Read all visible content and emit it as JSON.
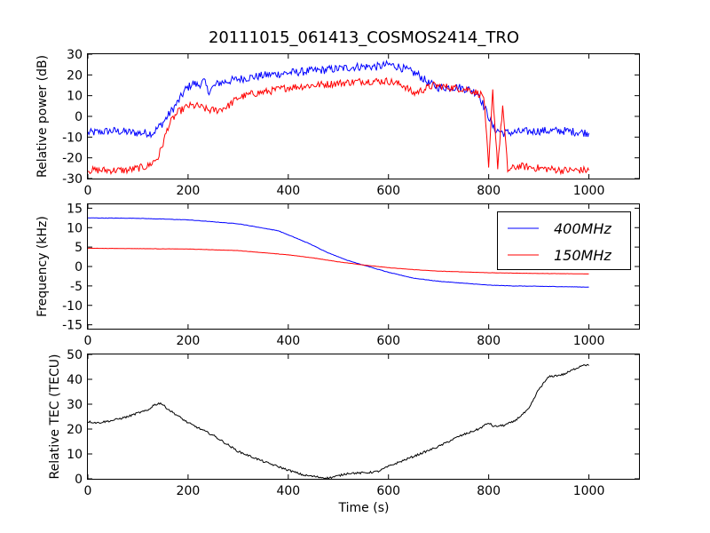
{
  "figure": {
    "title": "20111015_061413_COSMOS2414_TRO",
    "xlabel": "Time (s)"
  },
  "chart_data": [
    {
      "type": "line",
      "ylabel": "Relative power (dB)",
      "xlim": [
        0,
        1100
      ],
      "ylim": [
        -30,
        30
      ],
      "x_ticks": [
        0,
        200,
        400,
        600,
        800,
        1000
      ],
      "y_ticks": [
        -30,
        -20,
        -10,
        0,
        10,
        20,
        30
      ],
      "grid": false,
      "series": [
        {
          "color": "#0000ff",
          "noise": 2.0,
          "points": [
            [
              0,
              -8
            ],
            [
              50,
              -7
            ],
            [
              100,
              -8
            ],
            [
              130,
              -8
            ],
            [
              150,
              -3
            ],
            [
              165,
              2
            ],
            [
              180,
              7
            ],
            [
              195,
              13
            ],
            [
              210,
              16
            ],
            [
              220,
              15
            ],
            [
              232,
              17
            ],
            [
              240,
              12
            ],
            [
              250,
              14
            ],
            [
              260,
              16
            ],
            [
              280,
              17
            ],
            [
              300,
              18
            ],
            [
              330,
              19
            ],
            [
              360,
              20
            ],
            [
              400,
              21
            ],
            [
              450,
              22
            ],
            [
              500,
              23
            ],
            [
              540,
              24
            ],
            [
              580,
              24
            ],
            [
              600,
              25
            ],
            [
              620,
              24
            ],
            [
              640,
              22
            ],
            [
              660,
              20
            ],
            [
              680,
              16
            ],
            [
              700,
              14
            ],
            [
              740,
              14
            ],
            [
              760,
              13
            ],
            [
              780,
              11
            ],
            [
              790,
              5
            ],
            [
              800,
              0
            ],
            [
              810,
              -6
            ],
            [
              830,
              -8
            ],
            [
              900,
              -7
            ],
            [
              950,
              -7
            ],
            [
              1000,
              -8
            ]
          ]
        },
        {
          "color": "#ff0000",
          "noise": 1.8,
          "points": [
            [
              0,
              -26
            ],
            [
              80,
              -26
            ],
            [
              120,
              -24
            ],
            [
              140,
              -20
            ],
            [
              150,
              -13
            ],
            [
              160,
              -5
            ],
            [
              170,
              -1
            ],
            [
              180,
              2
            ],
            [
              200,
              5
            ],
            [
              220,
              5
            ],
            [
              240,
              3
            ],
            [
              260,
              3
            ],
            [
              280,
              5
            ],
            [
              300,
              9
            ],
            [
              330,
              11
            ],
            [
              360,
              12
            ],
            [
              400,
              14
            ],
            [
              450,
              15
            ],
            [
              500,
              16
            ],
            [
              550,
              17
            ],
            [
              600,
              17
            ],
            [
              630,
              15
            ],
            [
              650,
              11
            ],
            [
              670,
              13
            ],
            [
              690,
              15
            ],
            [
              720,
              14
            ],
            [
              760,
              13
            ],
            [
              790,
              10
            ],
            [
              800,
              -25
            ],
            [
              808,
              12
            ],
            [
              818,
              -24
            ],
            [
              828,
              5
            ],
            [
              838,
              -26
            ],
            [
              860,
              -24
            ],
            [
              900,
              -25
            ],
            [
              950,
              -26
            ],
            [
              1000,
              -26
            ]
          ]
        }
      ]
    },
    {
      "type": "line",
      "ylabel": "Frequency (kHz)",
      "xlim": [
        0,
        1100
      ],
      "ylim": [
        -16,
        16
      ],
      "x_ticks": [
        0,
        200,
        400,
        600,
        800,
        1000
      ],
      "y_ticks": [
        -15,
        -10,
        -5,
        0,
        5,
        10,
        15
      ],
      "grid": false,
      "legend": "top-right",
      "series": [
        {
          "name": "400MHz",
          "color": "#0000ff",
          "noise": 0.05,
          "points": [
            [
              0,
              12.5
            ],
            [
              100,
              12.4
            ],
            [
              200,
              12
            ],
            [
              300,
              11
            ],
            [
              380,
              9.2
            ],
            [
              440,
              6
            ],
            [
              480,
              3.5
            ],
            [
              520,
              1.5
            ],
            [
              560,
              0
            ],
            [
              600,
              -1.5
            ],
            [
              650,
              -3
            ],
            [
              700,
              -3.8
            ],
            [
              750,
              -4.3
            ],
            [
              800,
              -4.8
            ],
            [
              850,
              -5
            ],
            [
              900,
              -5.1
            ],
            [
              1000,
              -5.3
            ]
          ]
        },
        {
          "name": "150MHz",
          "color": "#ff0000",
          "noise": 0.03,
          "points": [
            [
              0,
              4.7
            ],
            [
              100,
              4.6
            ],
            [
              200,
              4.5
            ],
            [
              300,
              4.1
            ],
            [
              400,
              3
            ],
            [
              450,
              2.2
            ],
            [
              500,
              1.2
            ],
            [
              550,
              0.4
            ],
            [
              600,
              -0.3
            ],
            [
              650,
              -0.8
            ],
            [
              700,
              -1.2
            ],
            [
              800,
              -1.6
            ],
            [
              900,
              -1.8
            ],
            [
              1000,
              -1.9
            ]
          ]
        }
      ]
    },
    {
      "type": "line",
      "ylabel": "Relative TEC (TECU)",
      "xlim": [
        0,
        1100
      ],
      "ylim": [
        0,
        50
      ],
      "x_ticks": [
        0,
        200,
        400,
        600,
        800,
        1000
      ],
      "y_ticks": [
        0,
        10,
        20,
        30,
        40,
        50
      ],
      "grid": false,
      "series": [
        {
          "color": "#000000",
          "noise": 0.4,
          "points": [
            [
              0,
              23
            ],
            [
              20,
              22.5
            ],
            [
              50,
              23.5
            ],
            [
              80,
              25
            ],
            [
              100,
              26.5
            ],
            [
              120,
              27.5
            ],
            [
              130,
              29.5
            ],
            [
              145,
              30.5
            ],
            [
              160,
              28
            ],
            [
              200,
              22.5
            ],
            [
              250,
              17.5
            ],
            [
              300,
              11
            ],
            [
              350,
              7
            ],
            [
              400,
              3.5
            ],
            [
              430,
              1.5
            ],
            [
              460,
              0.7
            ],
            [
              480,
              0.3
            ],
            [
              500,
              1.2
            ],
            [
              520,
              2.3
            ],
            [
              540,
              2.3
            ],
            [
              560,
              2.5
            ],
            [
              580,
              3
            ],
            [
              600,
              5
            ],
            [
              650,
              9
            ],
            [
              700,
              13
            ],
            [
              740,
              17
            ],
            [
              780,
              20
            ],
            [
              800,
              22.5
            ],
            [
              810,
              21
            ],
            [
              830,
              21.5
            ],
            [
              850,
              23
            ],
            [
              880,
              28
            ],
            [
              900,
              36
            ],
            [
              920,
              41
            ],
            [
              950,
              42
            ],
            [
              970,
              44
            ],
            [
              990,
              46
            ],
            [
              1000,
              45.5
            ]
          ]
        }
      ]
    }
  ]
}
